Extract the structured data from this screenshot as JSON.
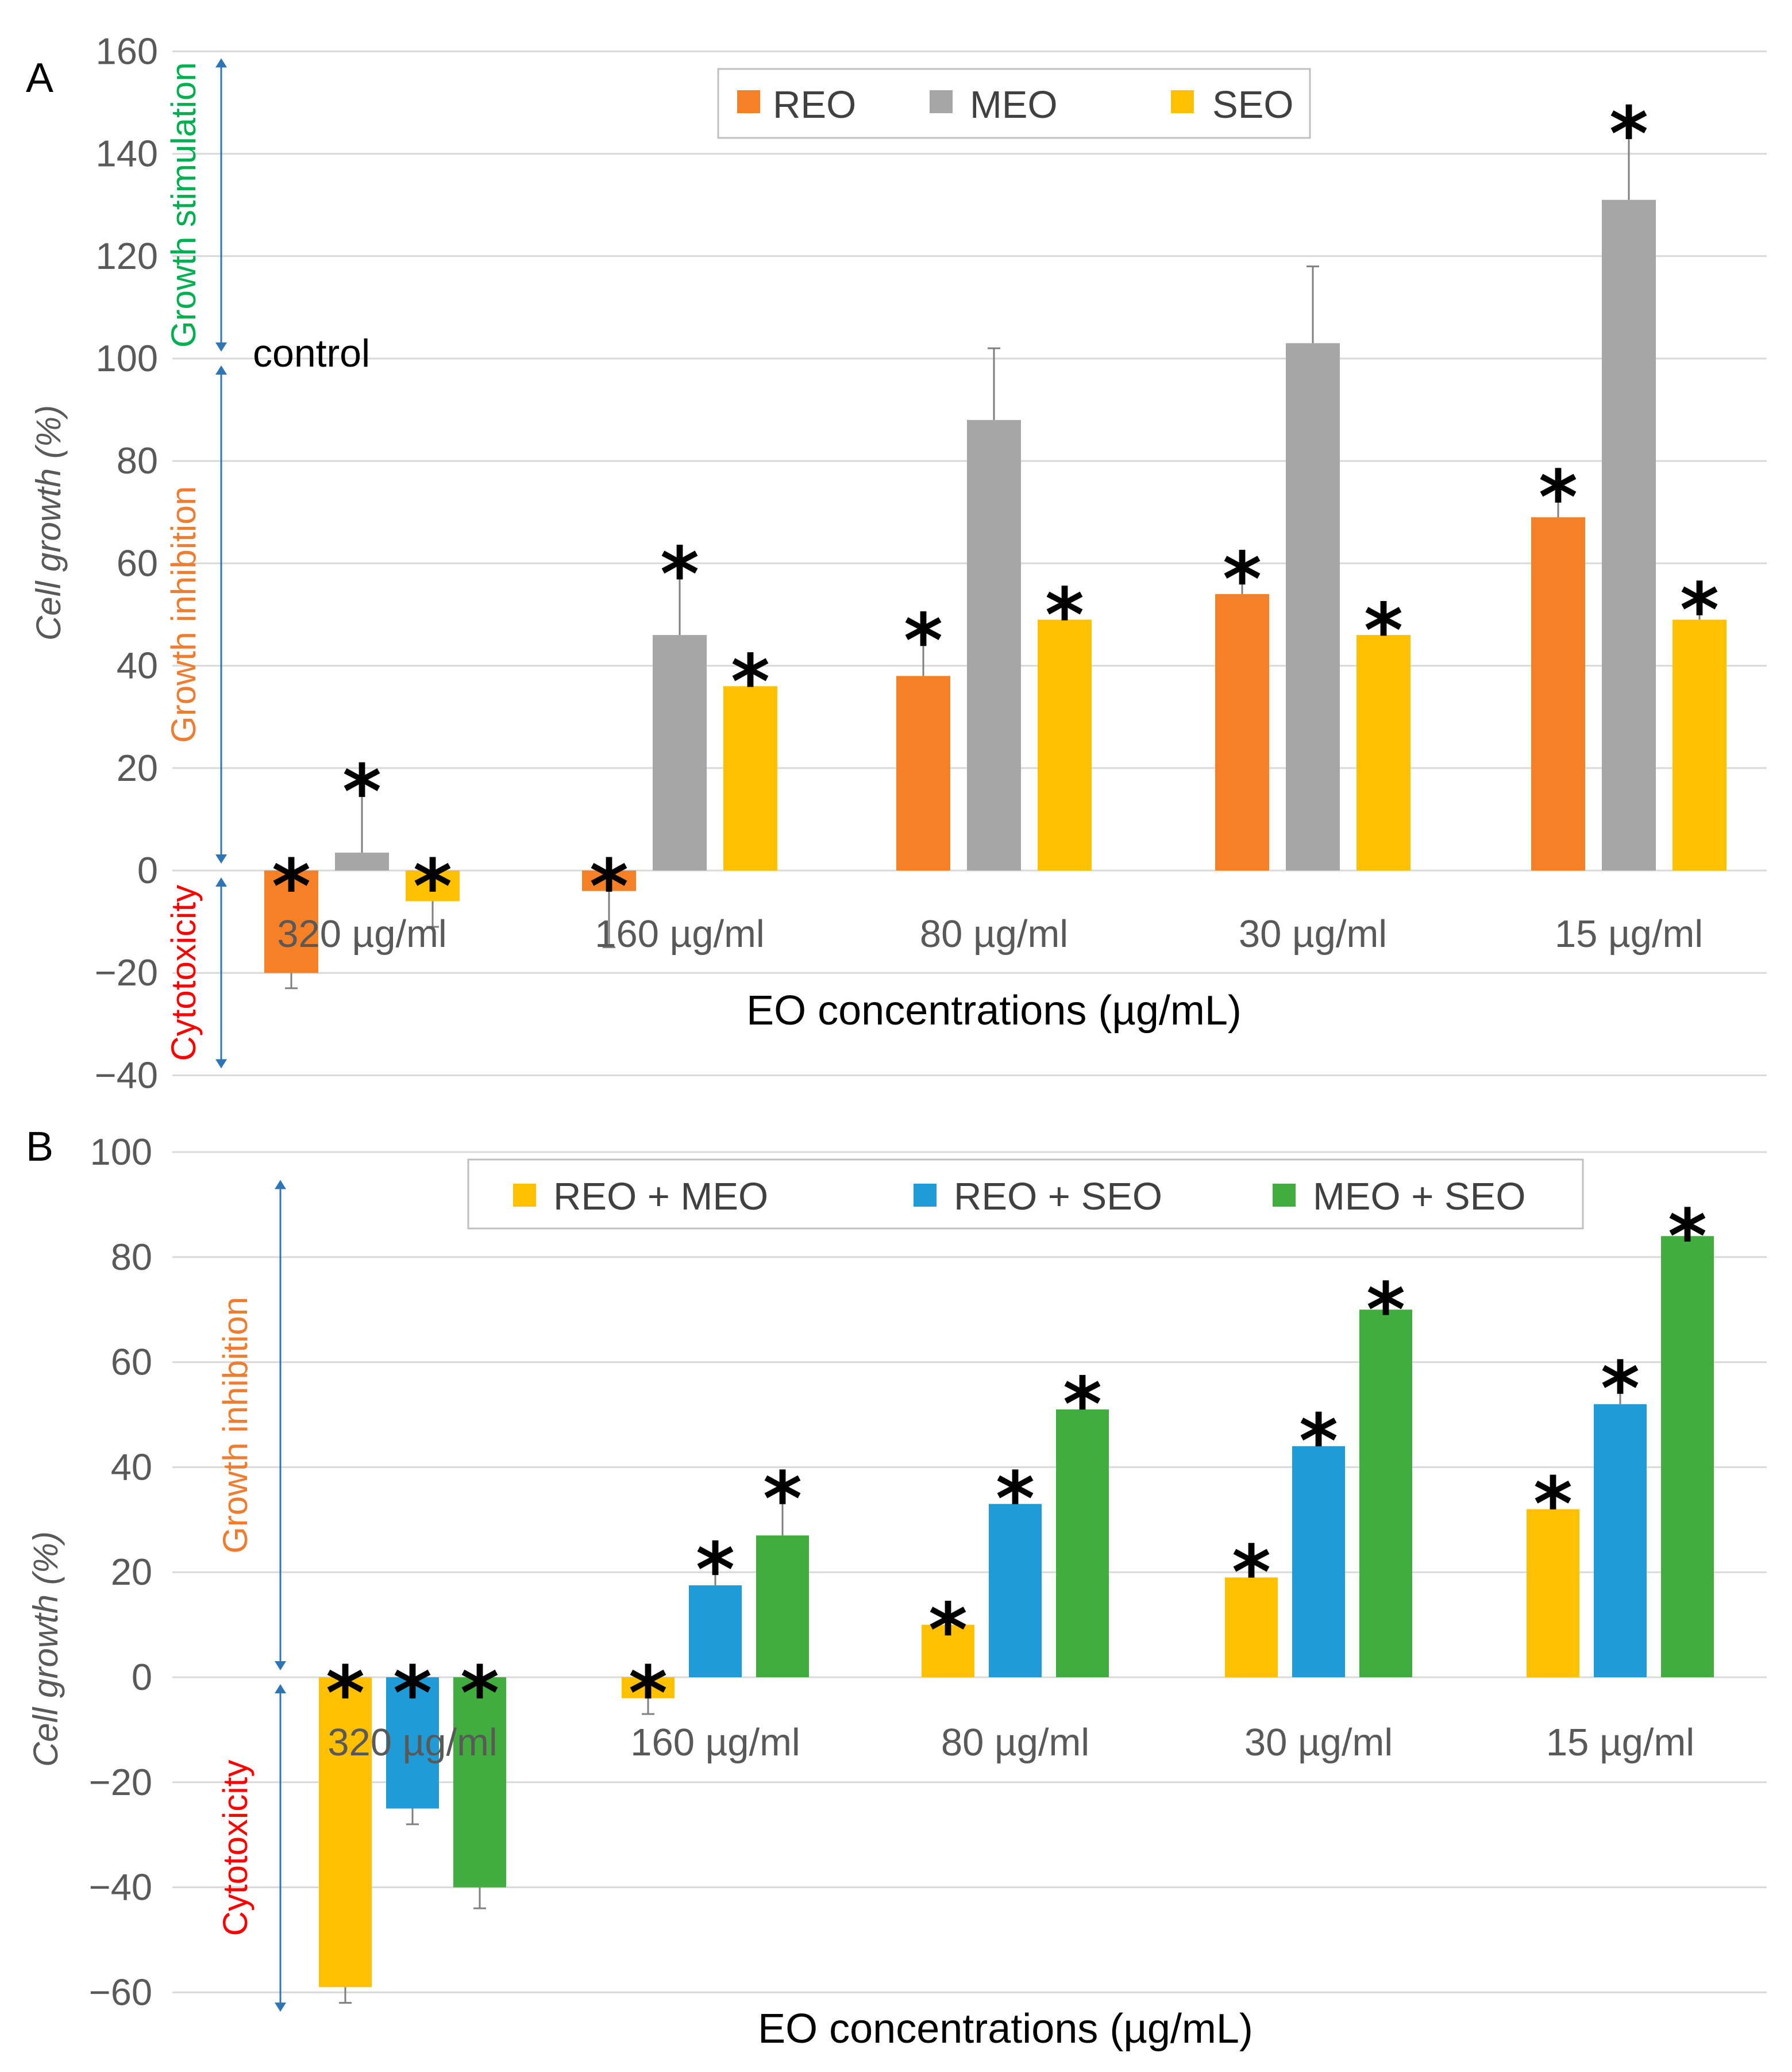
{
  "chart_data": [
    {
      "panel_label": "A",
      "type": "bar",
      "xlabel": "EO concentrations (µg/mL)",
      "ylabel": "Cell growth (%)",
      "ylim": [
        -40,
        160
      ],
      "yticks": [
        160,
        140,
        120,
        100,
        80,
        60,
        40,
        20,
        0,
        -20,
        -40
      ],
      "grid": true,
      "legend_position": "top-center",
      "categories": [
        "320 µg/ml",
        "160 µg/ml",
        "80 µg/ml",
        "30 µg/ml",
        "15 µg/ml"
      ],
      "series": [
        {
          "name": "REO",
          "color": "#F58025",
          "values": [
            -20,
            -4,
            38,
            54,
            69
          ],
          "errors": [
            3,
            11,
            10,
            6,
            7
          ],
          "significant": [
            true,
            true,
            true,
            true,
            true
          ]
        },
        {
          "name": "MEO",
          "color": "#A6A6A6",
          "values": [
            3.5,
            46,
            88,
            103,
            131
          ],
          "errors": [
            15,
            15,
            14,
            15,
            16
          ],
          "significant": [
            true,
            true,
            false,
            false,
            true
          ]
        },
        {
          "name": "SEO",
          "color": "#FFC000",
          "values": [
            -6,
            36,
            49,
            46,
            49
          ],
          "errors": [
            5,
            4,
            4,
            4,
            5
          ],
          "significant": [
            true,
            true,
            true,
            true,
            true
          ]
        }
      ],
      "annotations": {
        "control": "control",
        "significance_marker": "*",
        "bands": [
          {
            "text": "Growth stimulation",
            "color": "#00B050",
            "from": 100,
            "to": 160
          },
          {
            "text": "Growth inhibition",
            "color": "#ED7D31",
            "from": 0,
            "to": 100
          },
          {
            "text": "Cytotoxicity",
            "color": "#FF0000",
            "from": -40,
            "to": 0
          }
        ]
      }
    },
    {
      "panel_label": "B",
      "type": "bar",
      "xlabel": "EO concentrations (µg/mL)",
      "ylabel": "Cell growth (%)",
      "ylim": [
        -65,
        100
      ],
      "yticks": [
        100,
        80,
        60,
        40,
        20,
        0,
        -20,
        -40,
        -60
      ],
      "grid": true,
      "legend_position": "top-center",
      "categories": [
        "320 µg/ml",
        "160 µg/ml",
        "80 µg/ml",
        "30 µg/ml",
        "15 µg/ml"
      ],
      "series": [
        {
          "name": "REO + MEO",
          "color": "#FFC000",
          "values": [
            -59,
            -4,
            10,
            19,
            32
          ],
          "errors": [
            3,
            3,
            2,
            4,
            4
          ],
          "significant": [
            true,
            true,
            true,
            true,
            true
          ]
        },
        {
          "name": "REO + SEO",
          "color": "#1F9BD7",
          "values": [
            -25,
            17.5,
            33,
            44,
            52
          ],
          "errors": [
            3,
            6,
            4,
            4,
            6
          ],
          "significant": [
            true,
            true,
            true,
            true,
            true
          ]
        },
        {
          "name": "MEO + SEO",
          "color": "#41AD3E",
          "values": [
            -40,
            27,
            51,
            70,
            84
          ],
          "errors": [
            4,
            10,
            4,
            3,
            3
          ],
          "significant": [
            true,
            true,
            true,
            true,
            true
          ]
        }
      ],
      "annotations": {
        "significance_marker": "*",
        "bands": [
          {
            "text": "Growth inhibition",
            "color": "#ED7D31",
            "from": 0,
            "to": 96
          },
          {
            "text": "Cytotoxicity",
            "color": "#FF0000",
            "from": -65,
            "to": 0
          }
        ]
      }
    }
  ]
}
